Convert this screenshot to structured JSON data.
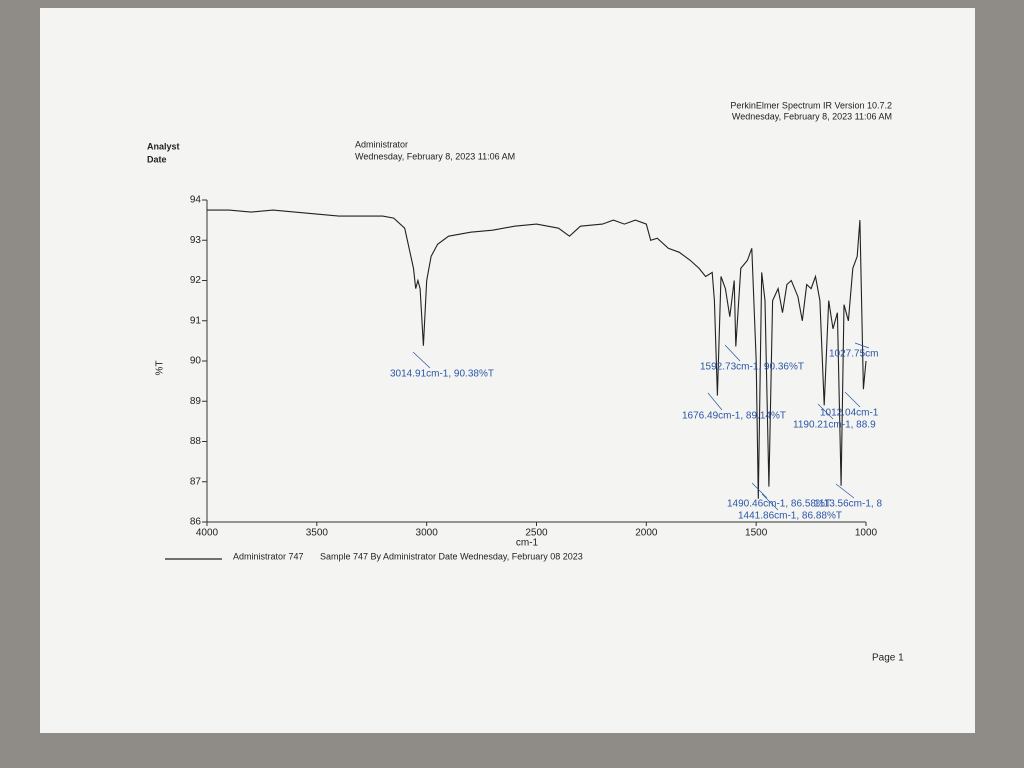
{
  "header": {
    "analyst_label": "Analyst",
    "date_label": "Date",
    "analyst": "Administrator",
    "date": "Wednesday, February 8, 2023 11:06 AM",
    "software": "PerkinElmer Spectrum IR Version 10.7.2",
    "print_date": "Wednesday, February 8, 2023 11:06 AM"
  },
  "chart_data": {
    "type": "line",
    "ylabel": "%T",
    "xlabel": "cm-1",
    "x": [
      4000,
      3900,
      3800,
      3700,
      3600,
      3500,
      3400,
      3300,
      3200,
      3150,
      3100,
      3080,
      3060,
      3050,
      3040,
      3030,
      3014.91,
      3000,
      2980,
      2950,
      2900,
      2800,
      2700,
      2600,
      2500,
      2400,
      2350,
      2300,
      2200,
      2150,
      2100,
      2050,
      2000,
      1980,
      1950,
      1900,
      1850,
      1800,
      1760,
      1730,
      1700,
      1690,
      1676.49,
      1660,
      1640,
      1620,
      1600,
      1592.73,
      1570,
      1540,
      1520,
      1500,
      1490.46,
      1475,
      1460,
      1441.86,
      1425,
      1400,
      1380,
      1360,
      1340,
      1310,
      1290,
      1270,
      1250,
      1230,
      1210,
      1190.21,
      1170,
      1150,
      1130,
      1113.56,
      1100,
      1080,
      1060,
      1040,
      1027.75,
      1012.04,
      1000
    ],
    "series": [
      {
        "name": "Administrator 747",
        "color": "#222222",
        "values": [
          93.75,
          93.75,
          93.7,
          93.75,
          93.7,
          93.65,
          93.6,
          93.6,
          93.6,
          93.55,
          93.3,
          92.8,
          92.3,
          91.8,
          92.0,
          91.8,
          90.38,
          92.0,
          92.6,
          92.9,
          93.1,
          93.2,
          93.25,
          93.35,
          93.4,
          93.3,
          93.1,
          93.35,
          93.4,
          93.5,
          93.4,
          93.5,
          93.4,
          93.0,
          93.05,
          92.8,
          92.7,
          92.5,
          92.3,
          92.1,
          92.2,
          91.5,
          89.14,
          92.1,
          91.8,
          91.1,
          92.0,
          90.36,
          92.3,
          92.5,
          92.8,
          90.0,
          86.58,
          92.2,
          91.5,
          86.88,
          91.5,
          91.8,
          91.2,
          91.9,
          92.0,
          91.6,
          91.0,
          91.9,
          91.8,
          92.1,
          91.5,
          88.9,
          91.5,
          90.8,
          91.2,
          86.9,
          91.4,
          91.0,
          92.3,
          92.6,
          93.5,
          89.3,
          90.0
        ]
      }
    ],
    "legend_text": "Sample 747 By Administrator Date Wednesday, February 08 2023",
    "xlim": [
      4000,
      1000
    ],
    "xticks": [
      4000,
      3500,
      3000,
      2500,
      2000,
      1500,
      1000
    ],
    "ylim": [
      86,
      94
    ],
    "yticks": [
      86,
      87,
      88,
      89,
      90,
      91,
      92,
      93,
      94
    ],
    "annotations": [
      "3014.91cm-1, 90.38%T",
      "1592.73cm-1, 90.36%T",
      "1027.75cm",
      "1676.49cm-1, 89.14%T",
      "1012.04cm-1",
      "1190.21cm-1, 88.9",
      "1490.46cm-1, 86.58%T",
      "1113.56cm-1, 8",
      "1441.86cm-1, 86.88%T"
    ],
    "annotation_color": "#2a56a8"
  },
  "footer": {
    "page": "Page 1"
  }
}
